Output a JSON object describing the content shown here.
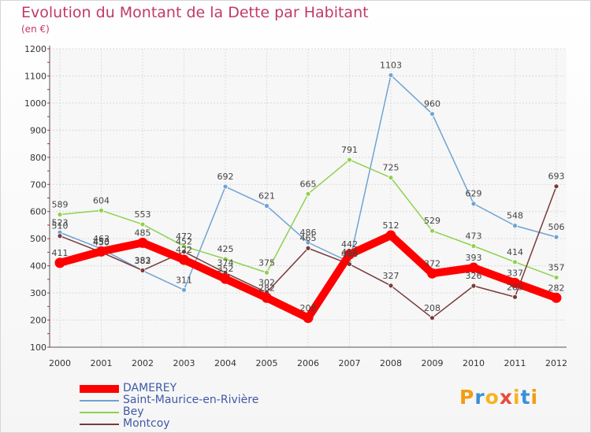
{
  "title": "Evolution du Montant de la Dette par Habitant",
  "subtitle": "(en €)",
  "logo": {
    "letters": [
      "P",
      "r",
      "o",
      "x",
      "i",
      "t",
      "i"
    ],
    "colors": [
      "#f39c12",
      "#3a8fd8",
      "#f5b323",
      "#e74c3c",
      "#f5b323",
      "#3a8fd8",
      "#f39c12"
    ]
  },
  "chart_data": {
    "type": "line",
    "categories": [
      "2000",
      "2001",
      "2002",
      "2003",
      "2004",
      "2005",
      "2006",
      "2007",
      "2008",
      "2009",
      "2010",
      "2011",
      "2012"
    ],
    "ylim": [
      100,
      1200
    ],
    "yticks": [
      100,
      200,
      300,
      400,
      500,
      600,
      700,
      800,
      900,
      1000,
      1100,
      1200
    ],
    "grid": true,
    "legend_position": "bottom-left",
    "series": [
      {
        "name": "DAMEREY",
        "color": "#ff0000",
        "values": [
          411,
          453,
          485,
          422,
          352,
          282,
          208,
          442,
          512,
          372,
          393,
          337,
          282
        ]
      },
      {
        "name": "Saint-Maurice-en-Rivière",
        "color": "#6fa3d3",
        "values": [
          523,
          463,
          382,
          311,
          692,
          621,
          486,
          414,
          1103,
          960,
          629,
          548,
          506
        ]
      },
      {
        "name": "Bey",
        "color": "#8fd14f",
        "values": [
          589,
          604,
          553,
          472,
          425,
          375,
          665,
          791,
          725,
          529,
          473,
          414,
          357
        ]
      },
      {
        "name": "Montcoy",
        "color": "#7a3a3a",
        "values": [
          510,
          450,
          383,
          452,
          374,
          302,
          465,
          406,
          327,
          208,
          326,
          285,
          693
        ]
      }
    ]
  }
}
